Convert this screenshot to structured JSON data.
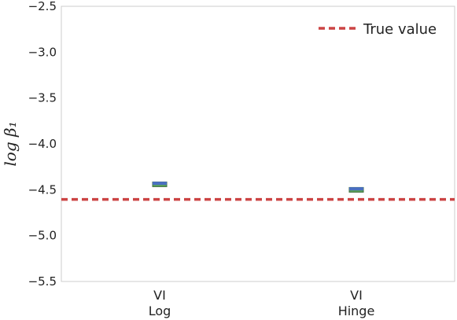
{
  "chart_data": {
    "type": "box",
    "ylabel": "log β₁",
    "ylim": [
      -5.5,
      -2.5
    ],
    "yticks": [
      -5.5,
      -5.0,
      -4.5,
      -4.0,
      -3.5,
      -3.0,
      -2.5
    ],
    "ytick_labels": [
      "−5.5",
      "−5.0",
      "−4.5",
      "−4.0",
      "−3.5",
      "−3.0",
      "−2.5"
    ],
    "categories": [
      {
        "line1": "VI",
        "line2": "Log"
      },
      {
        "line1": "VI",
        "line2": "Hinge"
      }
    ],
    "boxes": [
      {
        "median": -4.43,
        "q1": -4.445,
        "q3": -4.415
      },
      {
        "median": -4.49,
        "q1": -4.505,
        "q3": -4.475
      }
    ],
    "true_value": -4.605,
    "legend": {
      "label": "True value",
      "position": "top-right"
    },
    "colors": {
      "box_fill": "#5aa35a",
      "median": "#4a6fc2",
      "true_line": "#cc4444",
      "axes": "#cccccc"
    },
    "grid": false
  }
}
